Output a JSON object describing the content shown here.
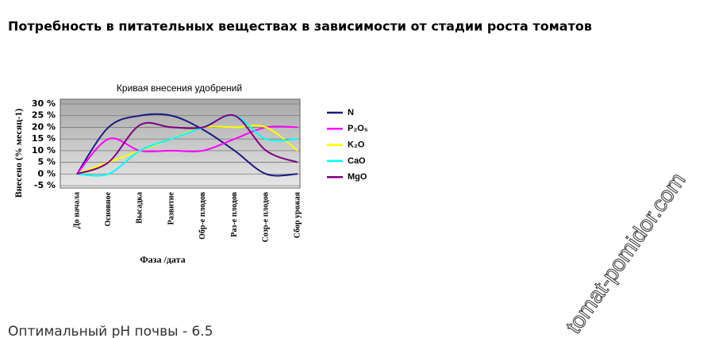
{
  "page_title": "Потребность в питательных веществах в зависимости от стадии роста томатов",
  "footer_text": "Оптимальный pH почвы - 6.5",
  "watermark": "tomat-pomidor.com",
  "chart_data": {
    "type": "line",
    "title": "Кривая внесения удобрений",
    "y_label": "Внесено (% месяц-1)",
    "x_label": "Фаза /дата",
    "categories": [
      "До начала",
      "Основное",
      "Высадка",
      "Развитие",
      "Обр-е плодов",
      "Раз-е плодов",
      "Созр-е плодов",
      "Сбор урожая"
    ],
    "ylim": [
      -5,
      30
    ],
    "yticks": [
      {
        "value": -5,
        "label": "-5 %"
      },
      {
        "value": 0,
        "label": "0 %"
      },
      {
        "value": 5,
        "label": "5 %"
      },
      {
        "value": 10,
        "label": "10 %"
      },
      {
        "value": 15,
        "label": "15 %"
      },
      {
        "value": 20,
        "label": "20 %"
      },
      {
        "value": 25,
        "label": "25 %"
      },
      {
        "value": 30,
        "label": "30 %"
      }
    ],
    "grid": true,
    "series": [
      {
        "name": "N",
        "color": "#1a1a80",
        "values": [
          0,
          20,
          25,
          25,
          19,
          10,
          0,
          0
        ]
      },
      {
        "name": "P₂O₅",
        "color": "#ff00ff",
        "values": [
          0,
          15,
          10,
          10,
          10,
          15,
          20,
          20
        ]
      },
      {
        "name": "K₂O",
        "color": "#ffff00",
        "values": [
          0,
          5,
          10,
          15,
          20,
          20,
          20,
          10
        ]
      },
      {
        "name": "CaO",
        "color": "#00ffff",
        "values": [
          0,
          0,
          10,
          15,
          20,
          25,
          15,
          15
        ]
      },
      {
        "name": "MgO",
        "color": "#800080",
        "values": [
          0,
          5,
          21,
          20,
          20,
          25,
          10,
          5
        ]
      }
    ]
  }
}
